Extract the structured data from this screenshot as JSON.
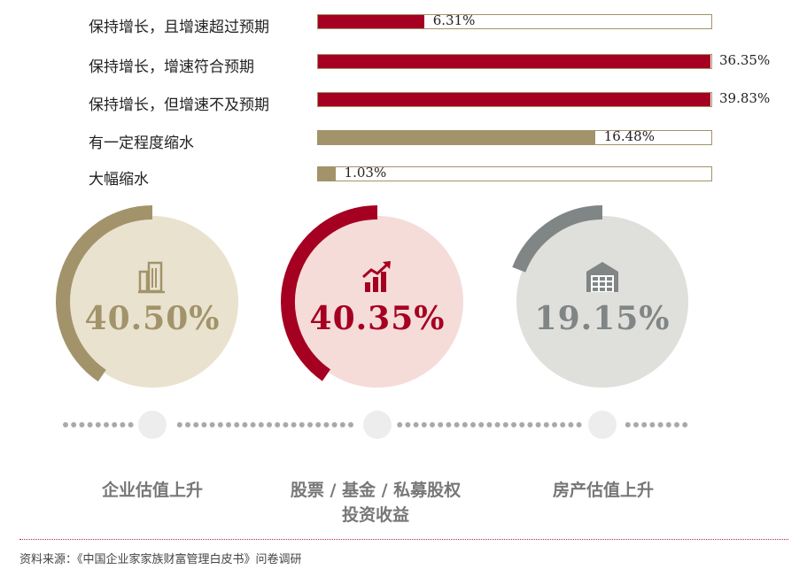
{
  "chart_data": [
    {
      "type": "bar",
      "orientation": "horizontal",
      "categories": [
        "保持增长，且增速超过预期",
        "保持增长，增速符合预期",
        "保持增长，但增速不及预期",
        "有一定程度缩水",
        "大幅缩水"
      ],
      "values": [
        6.31,
        36.35,
        39.83,
        16.48,
        1.03
      ],
      "value_labels": [
        "6.31%",
        "36.35%",
        "39.83%",
        "16.48%",
        "1.03%"
      ],
      "xlim": [
        0,
        100
      ],
      "colors": [
        "#a50021",
        "#a50021",
        "#a50021",
        "#a2936a",
        "#a2936a"
      ]
    },
    {
      "type": "pie",
      "style": "ring-gauges",
      "items": [
        {
          "category": "企业估值上升",
          "value": 40.5,
          "value_label": "40.50%",
          "icon": "building-icon",
          "color": "#a2936a",
          "inner_color": "#e9e2cf"
        },
        {
          "category": "股票 / 基金 / 私募股权\n投资收益",
          "category_line1": "股票 / 基金 / 私募股权",
          "category_line2": "投资收益",
          "value": 40.35,
          "value_label": "40.35%",
          "icon": "rising-chart-icon",
          "color": "#a50021",
          "inner_color": "#f5dcd9"
        },
        {
          "category": "房产估值上升",
          "value": 19.15,
          "value_label": "19.15%",
          "icon": "warehouse-icon",
          "color": "#808585",
          "inner_color": "#dfdfdb"
        }
      ]
    }
  ],
  "footer": {
    "source": "资料来源：《中国企业家家族财富管理白皮书》问卷调研"
  }
}
